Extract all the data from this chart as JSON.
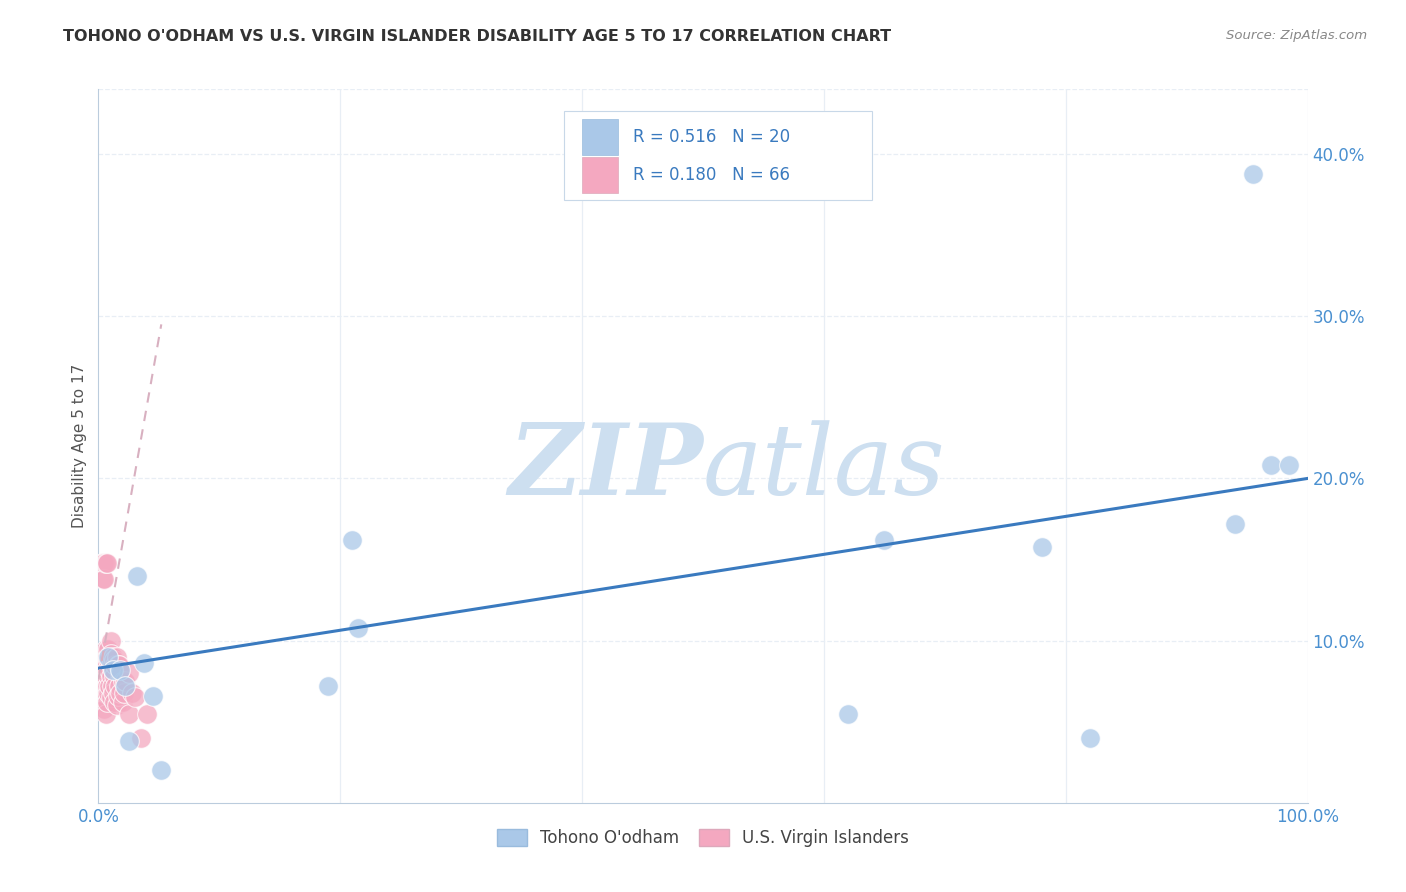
{
  "title": "TOHONO O'ODHAM VS U.S. VIRGIN ISLANDER DISABILITY AGE 5 TO 17 CORRELATION CHART",
  "source": "Source: ZipAtlas.com",
  "ylabel": "Disability Age 5 to 17",
  "xlim": [
    0.0,
    1.0
  ],
  "ylim": [
    0.0,
    0.44
  ],
  "blue_R": "0.516",
  "blue_N": "20",
  "pink_R": "0.180",
  "pink_N": "66",
  "blue_color": "#aac8e8",
  "pink_color": "#f4a8c0",
  "line_blue": "#3a7abf",
  "line_pink": "#d8b0c0",
  "text_blue": "#3a7abf",
  "text_pink": "#3a7abf",
  "watermark_color": "#cddff0",
  "grid_color": "#e8eef5",
  "title_color": "#333333",
  "tick_color": "#4a90d0",
  "blue_x": [
    0.008,
    0.012,
    0.018,
    0.022,
    0.025,
    0.032,
    0.038,
    0.045,
    0.052,
    0.19,
    0.21,
    0.215,
    0.62,
    0.65,
    0.78,
    0.82,
    0.94,
    0.955,
    0.97,
    0.985
  ],
  "blue_y": [
    0.09,
    0.082,
    0.082,
    0.072,
    0.038,
    0.14,
    0.086,
    0.066,
    0.02,
    0.072,
    0.162,
    0.108,
    0.055,
    0.162,
    0.158,
    0.04,
    0.172,
    0.388,
    0.208,
    0.208
  ],
  "pink_x": [
    0.004,
    0.004,
    0.004,
    0.005,
    0.005,
    0.005,
    0.005,
    0.005,
    0.005,
    0.006,
    0.006,
    0.006,
    0.006,
    0.006,
    0.007,
    0.007,
    0.007,
    0.007,
    0.008,
    0.008,
    0.008,
    0.008,
    0.009,
    0.009,
    0.009,
    0.01,
    0.01,
    0.01,
    0.01,
    0.01,
    0.011,
    0.011,
    0.012,
    0.012,
    0.012,
    0.013,
    0.013,
    0.013,
    0.014,
    0.014,
    0.015,
    0.015,
    0.016,
    0.016,
    0.017,
    0.017,
    0.018,
    0.018,
    0.019,
    0.02,
    0.02,
    0.021,
    0.022,
    0.025,
    0.025,
    0.028,
    0.03,
    0.035,
    0.04,
    0.003,
    0.004,
    0.004,
    0.005,
    0.005,
    0.006,
    0.007
  ],
  "pink_y": [
    0.082,
    0.072,
    0.062,
    0.092,
    0.085,
    0.078,
    0.068,
    0.058,
    0.148,
    0.095,
    0.088,
    0.078,
    0.068,
    0.055,
    0.09,
    0.082,
    0.072,
    0.062,
    0.095,
    0.088,
    0.078,
    0.068,
    0.09,
    0.082,
    0.072,
    0.1,
    0.092,
    0.085,
    0.078,
    0.065,
    0.088,
    0.072,
    0.09,
    0.082,
    0.068,
    0.088,
    0.078,
    0.062,
    0.085,
    0.072,
    0.09,
    0.06,
    0.085,
    0.066,
    0.085,
    0.072,
    0.08,
    0.068,
    0.08,
    0.075,
    0.062,
    0.068,
    0.075,
    0.08,
    0.055,
    0.068,
    0.065,
    0.04,
    0.055,
    0.148,
    0.148,
    0.138,
    0.148,
    0.138,
    0.148,
    0.148
  ],
  "blue_trend_x": [
    0.0,
    1.0
  ],
  "blue_trend_y": [
    0.083,
    0.2
  ],
  "pink_trend_x": [
    0.0,
    0.052
  ],
  "pink_trend_y": [
    0.076,
    0.295
  ],
  "ytick_vals": [
    0.1,
    0.2,
    0.3,
    0.4
  ],
  "ytick_labels": [
    "10.0%",
    "20.0%",
    "30.0%",
    "40.0%"
  ],
  "xtick_vals": [
    0.0,
    0.2,
    0.4,
    0.6,
    0.8,
    1.0
  ],
  "xtick_labels": [
    "0.0%",
    "",
    "",
    "",
    "",
    "100.0%"
  ]
}
